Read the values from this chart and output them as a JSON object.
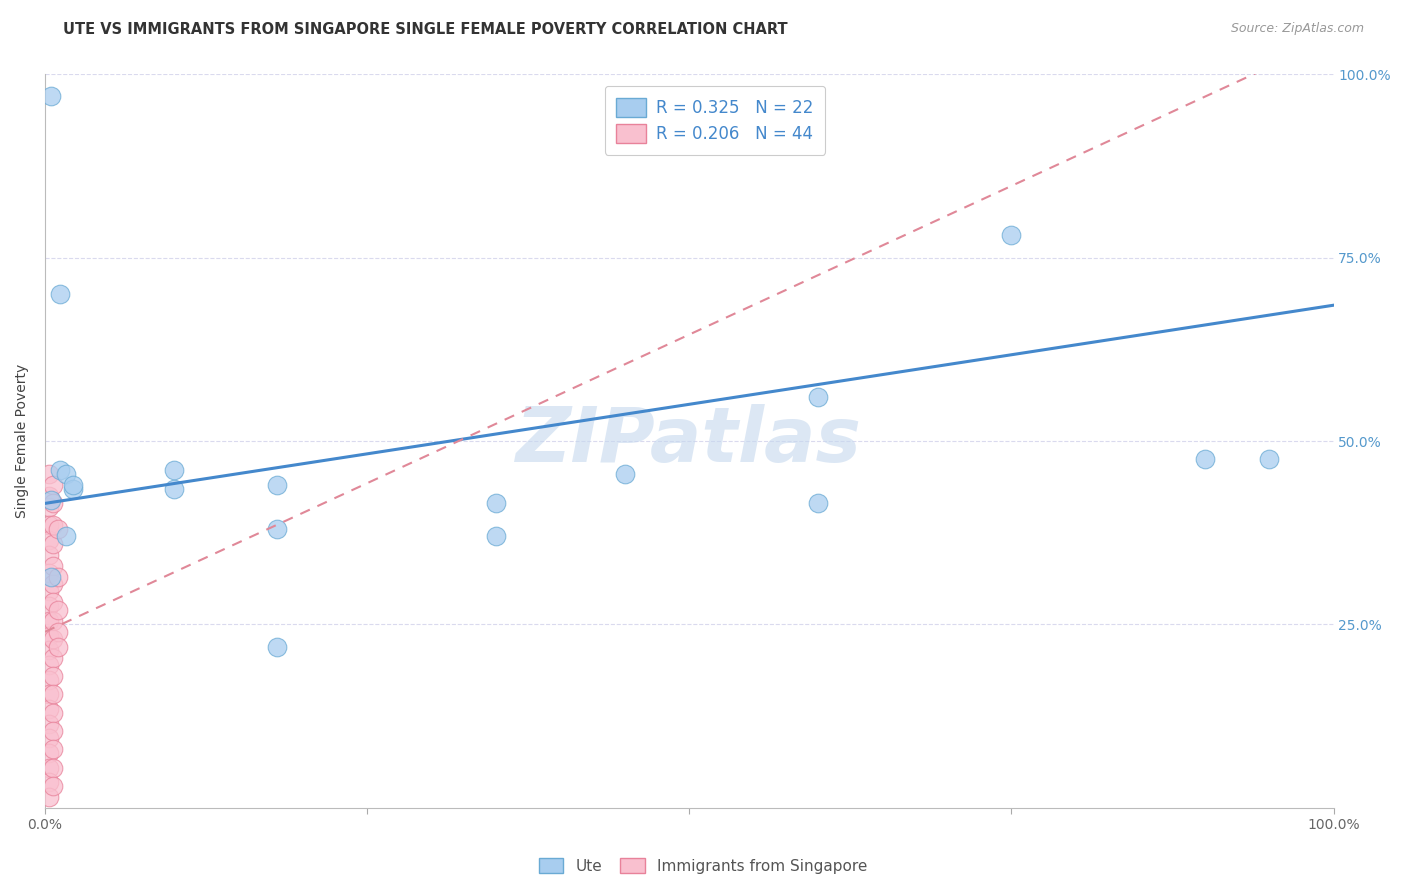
{
  "title": "UTE VS IMMIGRANTS FROM SINGAPORE SINGLE FEMALE POVERTY CORRELATION CHART",
  "source": "Source: ZipAtlas.com",
  "ylabel": "Single Female Poverty",
  "watermark": "ZIPatlas",
  "xlim": [
    0.0,
    1.0
  ],
  "ylim": [
    0.0,
    1.0
  ],
  "ytick_values": [
    0.25,
    0.5,
    0.75,
    1.0
  ],
  "ytick_labels_right": [
    "25.0%",
    "50.0%",
    "75.0%",
    "100.0%"
  ],
  "blue_color": "#A8CDEF",
  "blue_edge_color": "#6AAAD4",
  "pink_fill_color": "#F9C0CF",
  "pink_edge_color": "#E8829A",
  "blue_line_color": "#4488CC",
  "pink_line_color": "#E08898",
  "grid_color": "#DADAEE",
  "background_color": "#FFFFFF",
  "right_tick_color": "#5599CC",
  "title_fontsize": 10.5,
  "label_fontsize": 10,
  "tick_fontsize": 10,
  "legend_fontsize": 12,
  "watermark_fontsize": 55,
  "watermark_color": "#C5D8EE",
  "watermark_alpha": 0.6,
  "blue_points": [
    [
      0.005,
      0.97
    ],
    [
      0.012,
      0.7
    ],
    [
      0.012,
      0.46
    ],
    [
      0.016,
      0.455
    ],
    [
      0.005,
      0.42
    ],
    [
      0.022,
      0.435
    ],
    [
      0.022,
      0.44
    ],
    [
      0.016,
      0.37
    ],
    [
      0.1,
      0.435
    ],
    [
      0.1,
      0.46
    ],
    [
      0.18,
      0.38
    ],
    [
      0.18,
      0.44
    ],
    [
      0.45,
      0.455
    ],
    [
      0.6,
      0.56
    ],
    [
      0.6,
      0.415
    ],
    [
      0.75,
      0.78
    ],
    [
      0.9,
      0.475
    ],
    [
      0.95,
      0.475
    ],
    [
      0.005,
      0.315
    ],
    [
      0.18,
      0.22
    ],
    [
      0.35,
      0.37
    ],
    [
      0.35,
      0.415
    ]
  ],
  "pink_points": [
    [
      0.003,
      0.455
    ],
    [
      0.003,
      0.425
    ],
    [
      0.003,
      0.41
    ],
    [
      0.003,
      0.385
    ],
    [
      0.003,
      0.365
    ],
    [
      0.003,
      0.345
    ],
    [
      0.003,
      0.32
    ],
    [
      0.003,
      0.295
    ],
    [
      0.003,
      0.275
    ],
    [
      0.003,
      0.255
    ],
    [
      0.003,
      0.235
    ],
    [
      0.003,
      0.215
    ],
    [
      0.003,
      0.195
    ],
    [
      0.003,
      0.175
    ],
    [
      0.003,
      0.155
    ],
    [
      0.003,
      0.135
    ],
    [
      0.003,
      0.115
    ],
    [
      0.003,
      0.095
    ],
    [
      0.003,
      0.075
    ],
    [
      0.003,
      0.055
    ],
    [
      0.003,
      0.035
    ],
    [
      0.003,
      0.015
    ],
    [
      0.006,
      0.44
    ],
    [
      0.006,
      0.415
    ],
    [
      0.006,
      0.385
    ],
    [
      0.006,
      0.36
    ],
    [
      0.006,
      0.33
    ],
    [
      0.006,
      0.305
    ],
    [
      0.006,
      0.28
    ],
    [
      0.006,
      0.255
    ],
    [
      0.006,
      0.23
    ],
    [
      0.006,
      0.205
    ],
    [
      0.006,
      0.18
    ],
    [
      0.006,
      0.155
    ],
    [
      0.006,
      0.13
    ],
    [
      0.006,
      0.105
    ],
    [
      0.006,
      0.08
    ],
    [
      0.006,
      0.055
    ],
    [
      0.006,
      0.03
    ],
    [
      0.01,
      0.38
    ],
    [
      0.01,
      0.315
    ],
    [
      0.01,
      0.27
    ],
    [
      0.01,
      0.24
    ],
    [
      0.01,
      0.22
    ]
  ],
  "blue_line": [
    0.0,
    0.415,
    1.0,
    0.685
  ],
  "pink_line": [
    0.0,
    0.24,
    1.0,
    1.05
  ],
  "legend_blue_text": "R = 0.325   N = 22",
  "legend_pink_text": "R = 0.206   N = 44",
  "bottom_legend": [
    "Ute",
    "Immigrants from Singapore"
  ]
}
